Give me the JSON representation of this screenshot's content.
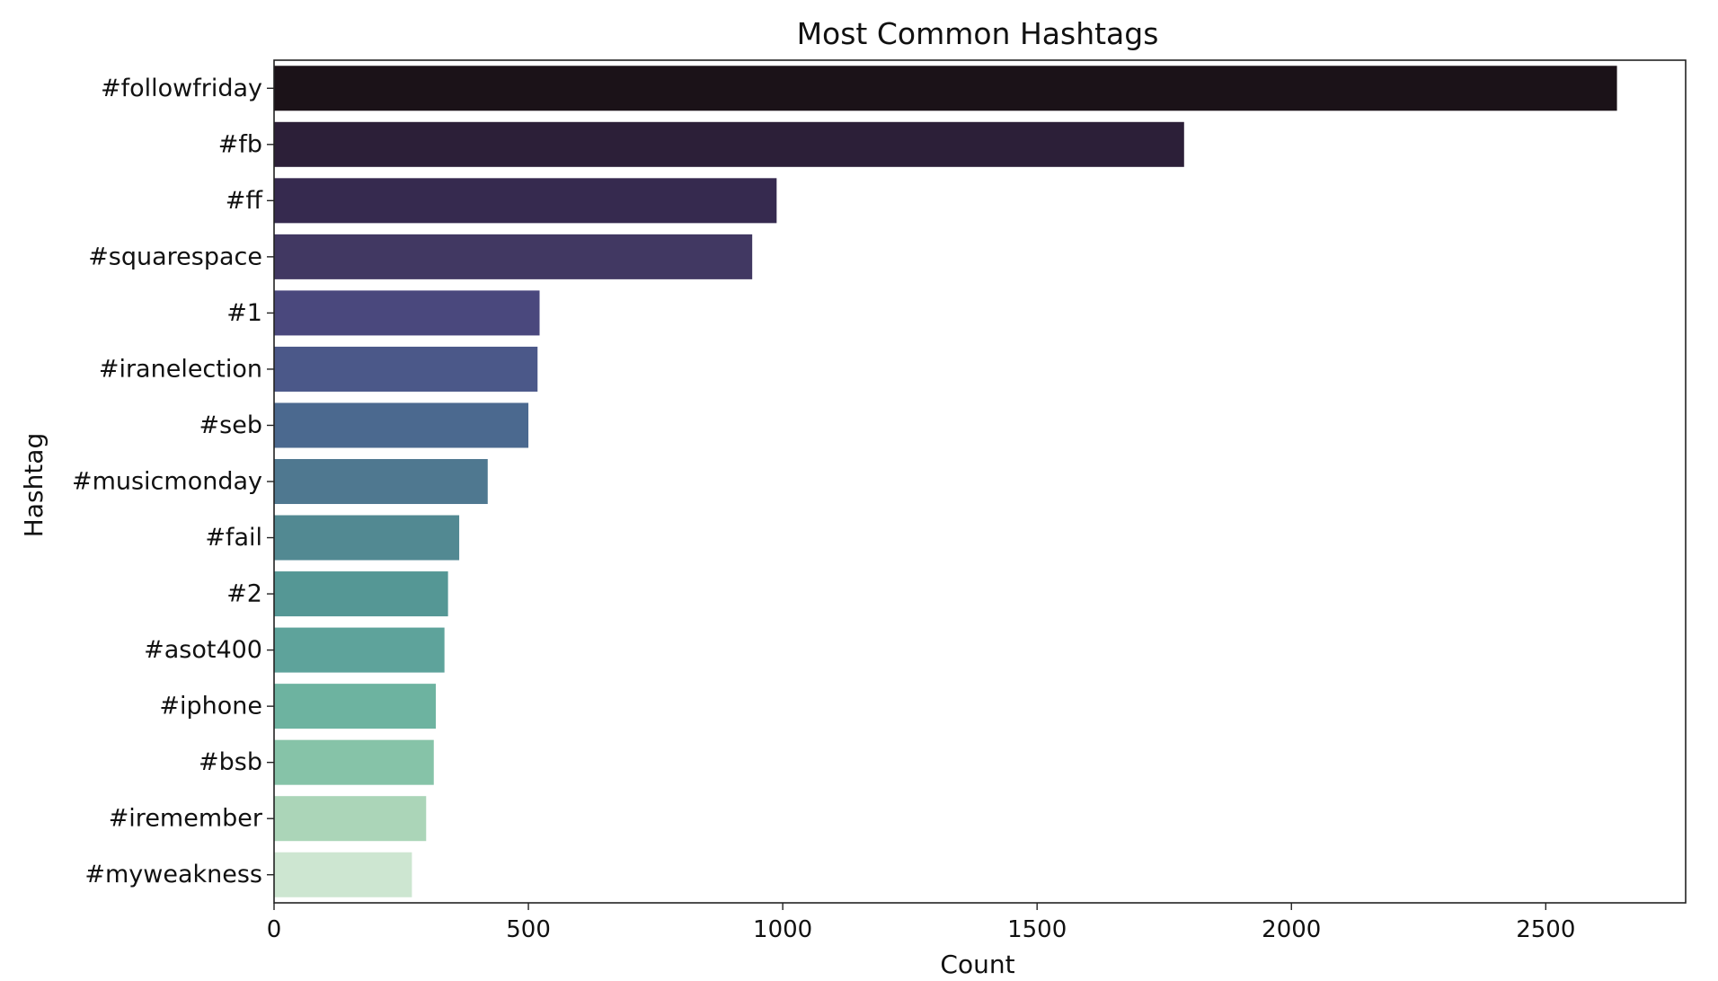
{
  "chart_data": {
    "type": "bar",
    "orientation": "horizontal",
    "title": "Most Common Hashtags",
    "xlabel": "Count",
    "ylabel": "Hashtag",
    "categories": [
      "#followfriday",
      "#fb",
      "#ff",
      "#squarespace",
      "#1",
      "#iranelection",
      "#seb",
      "#musicmonday",
      "#fail",
      "#2",
      "#asot400",
      "#iphone",
      "#bsb",
      "#iremember",
      "#myweakness"
    ],
    "values": [
      2640,
      1789,
      988,
      940,
      522,
      518,
      500,
      420,
      364,
      342,
      335,
      318,
      314,
      299,
      271
    ],
    "colors": [
      "#1b1218",
      "#2c1f38",
      "#362a4f",
      "#413862",
      "#4a487d",
      "#4b5889",
      "#4b698f",
      "#4f7890",
      "#528992",
      "#559795",
      "#5ea39b",
      "#6db3a0",
      "#86c3a8",
      "#abd5b8",
      "#cde6d1"
    ],
    "xlim": [
      0,
      2775
    ],
    "xticks": [
      0,
      500,
      1000,
      1500,
      2000,
      2500
    ],
    "grid": false,
    "legend": "none"
  }
}
